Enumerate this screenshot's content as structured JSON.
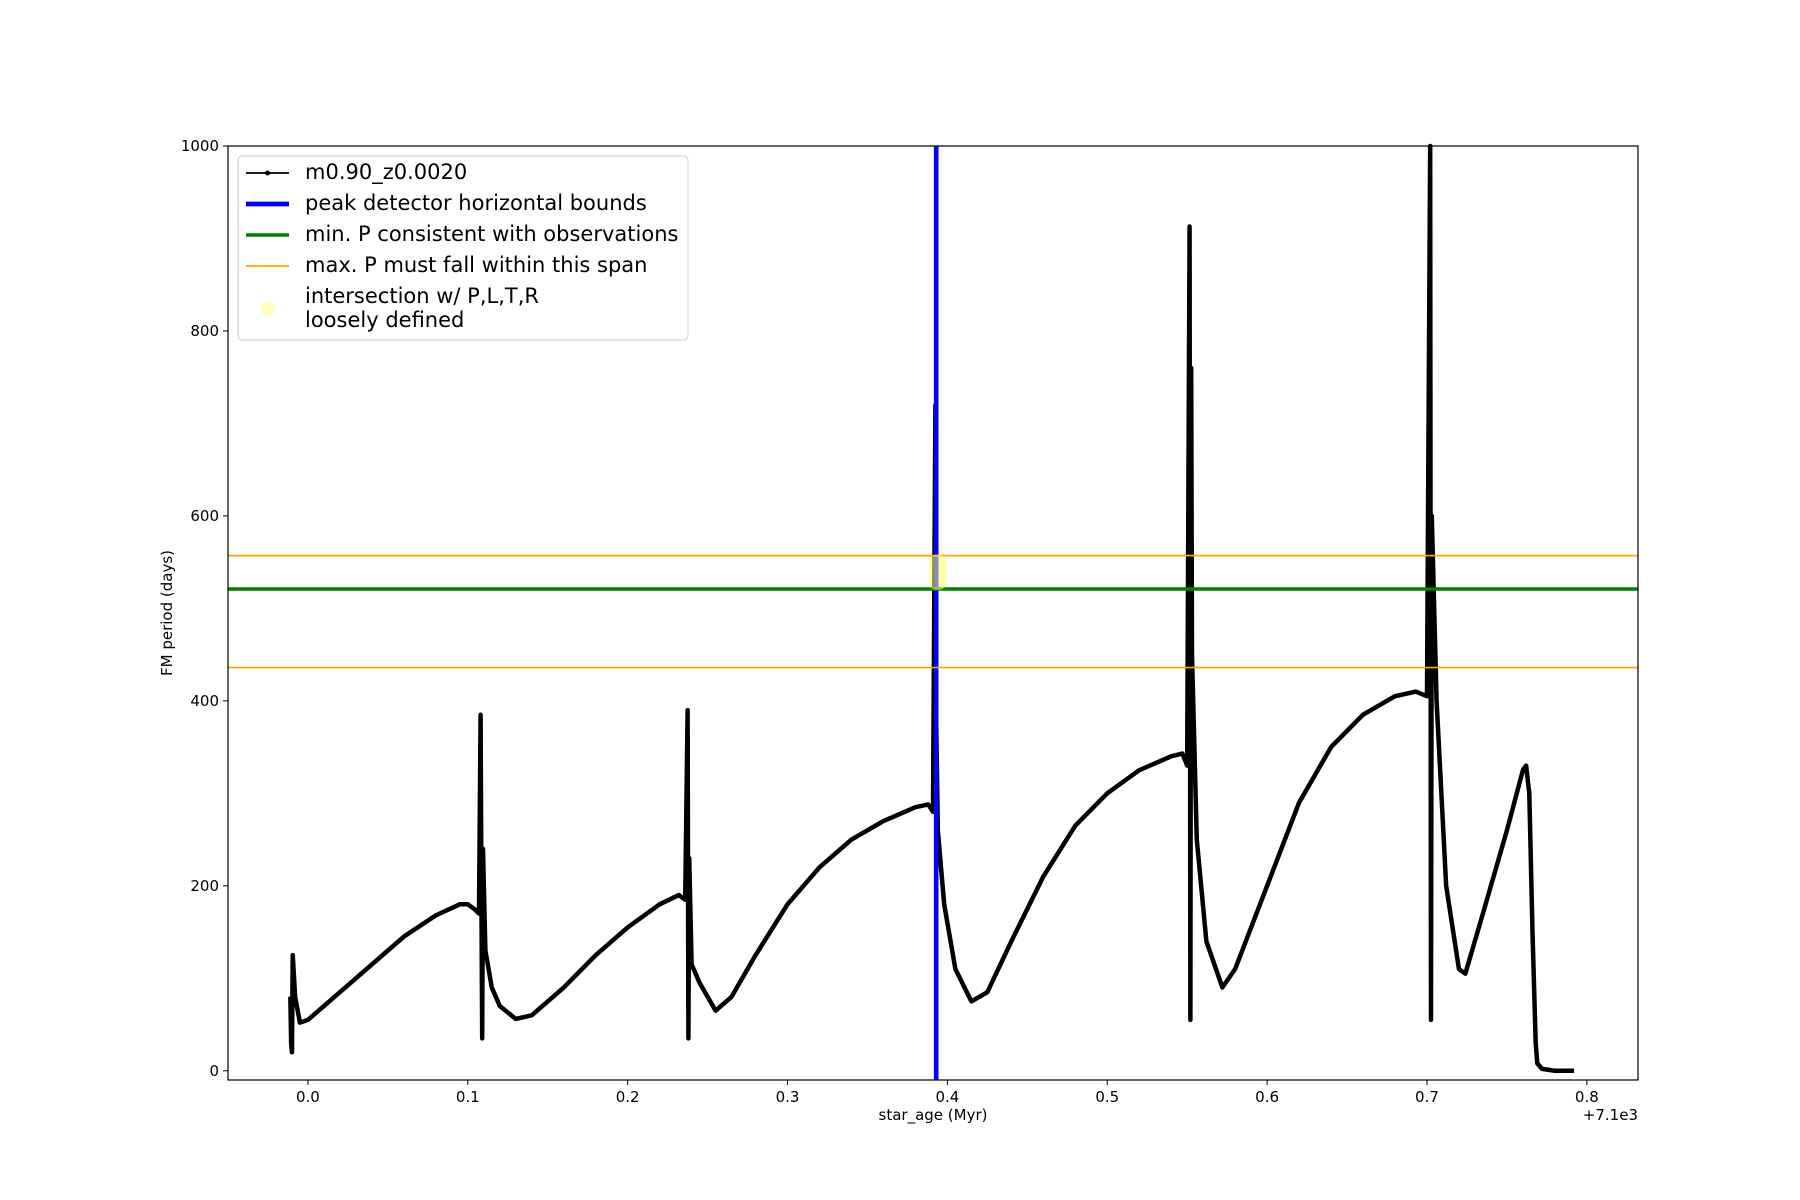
{
  "chart_data": {
    "type": "line",
    "xlabel": "star_age (Myr)",
    "ylabel": "FM period (days)",
    "x_offset_label": "+7.1e3",
    "xlim": [
      7099.95,
      7100.832
    ],
    "ylim": [
      -10,
      1000
    ],
    "xticks": [
      {
        "value": 7100.0,
        "label": "0.0"
      },
      {
        "value": 7100.1,
        "label": "0.1"
      },
      {
        "value": 7100.2,
        "label": "0.2"
      },
      {
        "value": 7100.3,
        "label": "0.3"
      },
      {
        "value": 7100.4,
        "label": "0.4"
      },
      {
        "value": 7100.5,
        "label": "0.5"
      },
      {
        "value": 7100.6,
        "label": "0.6"
      },
      {
        "value": 7100.7,
        "label": "0.7"
      },
      {
        "value": 7100.8,
        "label": "0.8"
      }
    ],
    "yticks": [
      0,
      200,
      400,
      600,
      800,
      1000
    ],
    "series": [
      {
        "name": "m0.90_z0.0020",
        "color": "#000000",
        "x": [
          7099.989,
          7099.9895,
          7099.99,
          7099.9905,
          7099.992,
          7099.995,
          7100.0,
          7100.02,
          7100.04,
          7100.06,
          7100.08,
          7100.095,
          7100.1,
          7100.104,
          7100.107,
          7100.108,
          7100.1085,
          7100.109,
          7100.1095,
          7100.111,
          7100.115,
          7100.12,
          7100.13,
          7100.14,
          7100.16,
          7100.18,
          7100.2,
          7100.22,
          7100.232,
          7100.236,
          7100.2375,
          7100.238,
          7100.2385,
          7100.24,
          7100.245,
          7100.255,
          7100.265,
          7100.28,
          7100.3,
          7100.32,
          7100.34,
          7100.36,
          7100.38,
          7100.388,
          7100.391,
          7100.3925,
          7100.393,
          7100.394,
          7100.398,
          7100.405,
          7100.415,
          7100.425,
          7100.44,
          7100.46,
          7100.48,
          7100.5,
          7100.52,
          7100.54,
          7100.547,
          7100.55,
          7100.5515,
          7100.552,
          7100.5525,
          7100.553,
          7100.556,
          7100.562,
          7100.572,
          7100.58,
          7100.6,
          7100.62,
          7100.64,
          7100.66,
          7100.68,
          7100.693,
          7100.7,
          7100.702,
          7100.7025,
          7100.703,
          7100.706,
          7100.712,
          7100.72,
          7100.724,
          7100.735,
          7100.75,
          7100.76,
          7100.762,
          7100.764,
          7100.766,
          7100.768,
          7100.769,
          7100.772,
          7100.78,
          7100.792
        ],
        "values": [
          80,
          30,
          20,
          125,
          80,
          52,
          55,
          85,
          115,
          145,
          168,
          180,
          180,
          175,
          170,
          385,
          200,
          35,
          240,
          130,
          90,
          70,
          56,
          60,
          90,
          125,
          155,
          180,
          190,
          185,
          390,
          35,
          230,
          115,
          95,
          65,
          80,
          125,
          180,
          220,
          250,
          270,
          285,
          288,
          280,
          720,
          380,
          260,
          180,
          110,
          75,
          85,
          140,
          210,
          265,
          300,
          325,
          340,
          343,
          330,
          913,
          55,
          760,
          450,
          250,
          140,
          90,
          110,
          200,
          290,
          350,
          385,
          405,
          410,
          405,
          1000,
          55,
          600,
          400,
          200,
          110,
          105,
          170,
          260,
          325,
          330,
          300,
          150,
          30,
          8,
          2,
          0,
          0
        ]
      }
    ],
    "reference_lines": [
      {
        "name": "peak detector horizontal bounds",
        "color": "#0000ff",
        "orientation": "vertical",
        "width": 4,
        "values": [
          7100.393
        ]
      },
      {
        "name": "min. P consistent with observations",
        "color": "#008000",
        "orientation": "horizontal",
        "width": 3,
        "values": [
          521
        ]
      },
      {
        "name": "max. P must fall within this span",
        "color": "#ffa500",
        "orientation": "horizontal",
        "width": 1.5,
        "values": [
          436,
          557
        ]
      }
    ],
    "highlight": {
      "name": [
        "intersection w/ P,L,T,R",
        "loosely defined"
      ],
      "color": "#ffff66",
      "x": 7100.394,
      "y": [
        520,
        558
      ]
    },
    "legend": "upper left"
  }
}
